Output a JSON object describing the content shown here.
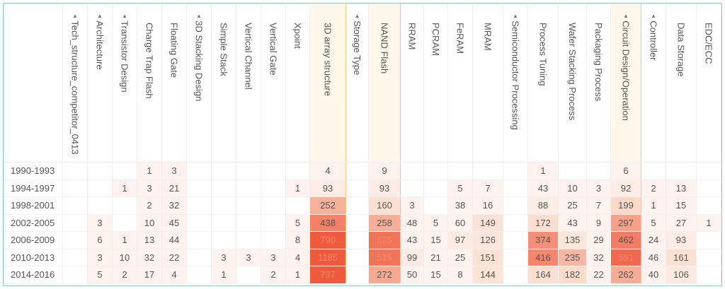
{
  "columns": [
    {
      "label": "Tech_structure_competitor_0413",
      "group": true
    },
    {
      "label": "Architecture",
      "group": true
    },
    {
      "label": "Transistor Design",
      "group": true
    },
    {
      "label": "Charge Trap Flash",
      "group": false
    },
    {
      "label": "Floating Gate",
      "group": false
    },
    {
      "label": "3D Stacking Design",
      "group": true
    },
    {
      "label": "Simple Stack",
      "group": false
    },
    {
      "label": "Vertical Channel",
      "group": false
    },
    {
      "label": "Vertical Gate",
      "group": false
    },
    {
      "label": "Xpoint",
      "group": false
    },
    {
      "label": "3D array structure",
      "group": false,
      "highlighted": true
    },
    {
      "label": "Storage Type",
      "group": true
    },
    {
      "label": "NAND Flash",
      "group": false,
      "highlighted": true
    },
    {
      "label": "RRAM",
      "group": false
    },
    {
      "label": "PCRAM",
      "group": false
    },
    {
      "label": "FeRAM",
      "group": false
    },
    {
      "label": "MRAM",
      "group": false
    },
    {
      "label": "Semiconductor Processing",
      "group": true
    },
    {
      "label": "Process Tuning",
      "group": false
    },
    {
      "label": "Wafer Stacking Process",
      "group": false
    },
    {
      "label": "Packaging Process",
      "group": false
    },
    {
      "label": "Circuit Design/Operation",
      "group": true,
      "highlighted": true
    },
    {
      "label": "Controller",
      "group": true
    },
    {
      "label": "Data Storage",
      "group": false
    },
    {
      "label": "EDC/ECC",
      "group": false
    }
  ],
  "expand_icon": "triangle-icon",
  "rows": [
    {
      "label": "1990-1993",
      "values": [
        "",
        "",
        "",
        1,
        3,
        "",
        "",
        "",
        "",
        "",
        4,
        "",
        9,
        "",
        "",
        "",
        "",
        "",
        1,
        "",
        "",
        6,
        "",
        "",
        ""
      ]
    },
    {
      "label": "1994-1997",
      "values": [
        "",
        "",
        1,
        3,
        21,
        "",
        "",
        "",
        "",
        1,
        93,
        "",
        93,
        "",
        "",
        5,
        7,
        "",
        43,
        10,
        3,
        92,
        2,
        13,
        ""
      ]
    },
    {
      "label": "1998-2001",
      "values": [
        "",
        "",
        "",
        2,
        32,
        "",
        "",
        "",
        "",
        "",
        252,
        "",
        160,
        3,
        "",
        38,
        16,
        "",
        88,
        25,
        7,
        199,
        1,
        15,
        ""
      ]
    },
    {
      "label": "2002-2005",
      "values": [
        "",
        3,
        "",
        10,
        45,
        "",
        "",
        "",
        "",
        5,
        438,
        "",
        258,
        48,
        5,
        60,
        149,
        "",
        172,
        43,
        9,
        297,
        5,
        27,
        1
      ]
    },
    {
      "label": "2006-2009",
      "values": [
        "",
        6,
        1,
        13,
        44,
        "",
        "",
        "",
        "",
        8,
        790,
        "",
        525,
        43,
        15,
        97,
        126,
        "",
        374,
        135,
        29,
        462,
        24,
        93,
        ""
      ]
    },
    {
      "label": "2010-2013",
      "values": [
        "",
        3,
        10,
        32,
        22,
        "",
        3,
        3,
        3,
        4,
        1185,
        "",
        515,
        99,
        21,
        25,
        151,
        "",
        416,
        235,
        32,
        591,
        46,
        161,
        ""
      ]
    },
    {
      "label": "2014-2016",
      "values": [
        "",
        5,
        2,
        17,
        4,
        "",
        1,
        "",
        2,
        1,
        737,
        "",
        272,
        50,
        15,
        8,
        144,
        "",
        164,
        182,
        22,
        262,
        40,
        106,
        ""
      ]
    }
  ],
  "colors": {
    "heat_low": "#fdf2ee",
    "heat_mid": "#fbd9c6",
    "heat_high": "#ef5a3e",
    "highlight_border": "#fbc67a",
    "frame": "#7fd0b8"
  }
}
